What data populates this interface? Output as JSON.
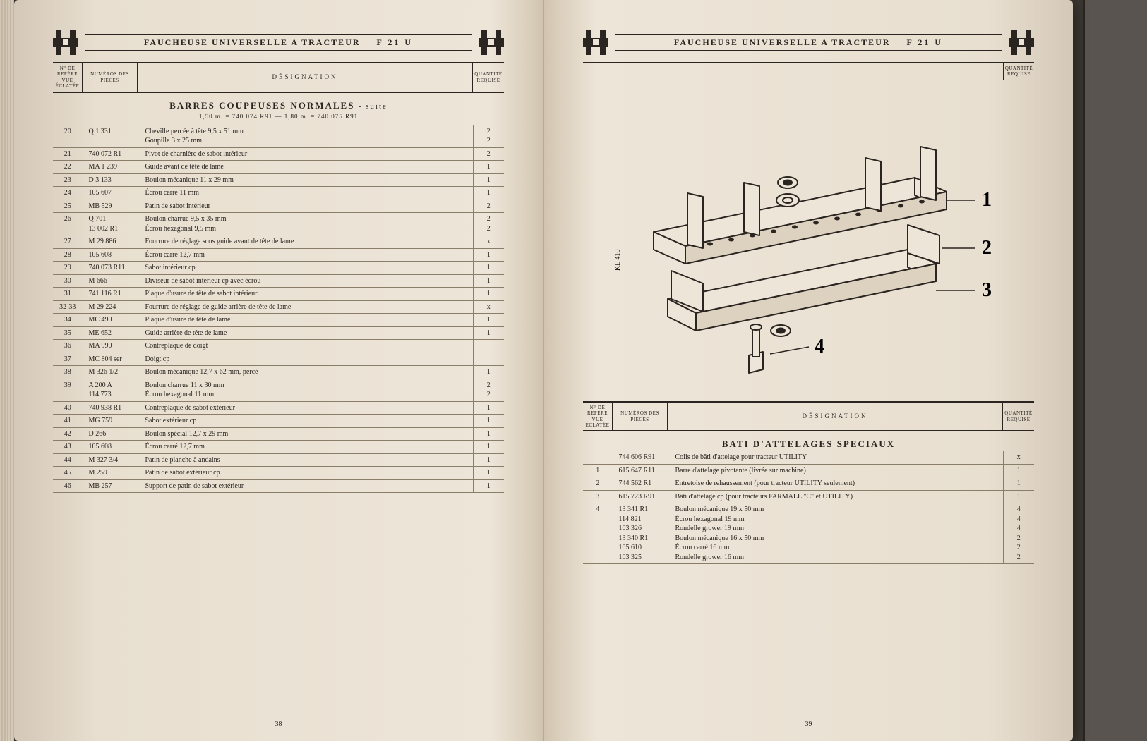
{
  "document_title": "FAUCHEUSE UNIVERSELLE A TRACTEUR",
  "model": "F 21 U",
  "column_headers": {
    "ref": "N° DE REPÈRE VUE ÉCLATÉE",
    "num": "NUMÉROS DES PIÈCES",
    "des": "DÉSIGNATION",
    "qty": "QUANTITÉ REQUISE"
  },
  "left_page": {
    "page_number": "38",
    "section_title": "BARRES COUPEUSES NORMALES",
    "section_suite": "- suite",
    "section_sub": "1,50 m. = 740 074 R91 — 1,80 m. = 740 075 R91",
    "rows": [
      {
        "ref": "20",
        "num": "Q     1 331",
        "des": "Cheville percée à tête 9,5 x 51 mm\nGoupille 3 x 25 mm",
        "qty": "2\n2"
      },
      {
        "ref": "21",
        "num": "740 072 R1",
        "des": "Pivot de charnière de sabot intérieur",
        "qty": "2"
      },
      {
        "ref": "22",
        "num": "MA   1 239",
        "des": "Guide avant de tête de lame",
        "qty": "1"
      },
      {
        "ref": "23",
        "num": "D     3 133",
        "des": "Boulon mécanique 11 x 29 mm",
        "qty": "1"
      },
      {
        "ref": "24",
        "num": "105 607",
        "des": "Écrou carré 11 mm",
        "qty": "1"
      },
      {
        "ref": "25",
        "num": "MB     529",
        "des": "Patin de sabot intérieur",
        "qty": "2"
      },
      {
        "ref": "26",
        "num": "Q       701\n13 002 R1",
        "des": "Boulon charrue 9,5 x 35 mm\nÉcrou hexagonal 9,5 mm",
        "qty": "2\n2"
      },
      {
        "ref": "27",
        "num": "M   29 886",
        "des": "Fourrure de réglage sous guide avant de tête de lame",
        "qty": "x"
      },
      {
        "ref": "28",
        "num": "105 608",
        "des": "Écrou carré 12,7 mm",
        "qty": "1"
      },
      {
        "ref": "29",
        "num": "740 073 R11",
        "des": "Sabot intérieur cp",
        "qty": "1"
      },
      {
        "ref": "30",
        "num": "M       666",
        "des": "Diviseur de sabot intérieur cp avec écrou",
        "qty": "1"
      },
      {
        "ref": "31",
        "num": "741 116 R1",
        "des": "Plaque d'usure de tête de sabot intérieur",
        "qty": "1"
      },
      {
        "ref": "32-33",
        "num": "M   29 224",
        "des": "Fourrure de réglage de guide arrière de tête de lame",
        "qty": "x"
      },
      {
        "ref": "34",
        "num": "MC     490",
        "des": "Plaque d'usure de tête de lame",
        "qty": "1"
      },
      {
        "ref": "35",
        "num": "ME     652",
        "des": "Guide arrière de tête de lame",
        "qty": "1"
      },
      {
        "ref": "36",
        "num": "MA     990",
        "des": "Contreplaque de doigt",
        "qty": ""
      },
      {
        "ref": "37",
        "num": "MC   804 ser",
        "des": "Doigt cp",
        "qty": ""
      },
      {
        "ref": "38",
        "num": "M     326 1/2",
        "des": "Boulon mécanique 12,7 x 62 mm, percé",
        "qty": "1"
      },
      {
        "ref": "39",
        "num": "A     200 A\n114 773",
        "des": "Boulon charrue 11 x 30 mm\nÉcrou hexagonal 11 mm",
        "qty": "2\n2"
      },
      {
        "ref": "40",
        "num": "740 938 R1",
        "des": "Contreplaque de sabot extérieur",
        "qty": "1"
      },
      {
        "ref": "41",
        "num": "MG     759",
        "des": "Sabot extérieur cp",
        "qty": "1"
      },
      {
        "ref": "42",
        "num": "D       266",
        "des": "Boulon spécial 12,7 x 29 mm",
        "qty": "1"
      },
      {
        "ref": "43",
        "num": "105 608",
        "des": "Écrou carré 12,7 mm",
        "qty": "1"
      },
      {
        "ref": "44",
        "num": "M     327 3/4",
        "des": "Patin de planche à andains",
        "qty": "1"
      },
      {
        "ref": "45",
        "num": "M       259",
        "des": "Patin de sabot extérieur cp",
        "qty": "1"
      },
      {
        "ref": "46",
        "num": "MB     257",
        "des": "Support de patin de sabot extérieur",
        "qty": "1"
      }
    ]
  },
  "right_page": {
    "page_number": "39",
    "diagram_code": "KL 410",
    "callouts": [
      "1",
      "2",
      "3",
      "4"
    ],
    "section_title": "BATI D'ATTELAGES SPECIAUX",
    "rows": [
      {
        "ref": "",
        "num": "744 606 R91",
        "des": "Colis de bâti d'attelage pour tracteur UTILITY",
        "qty": "x"
      },
      {
        "ref": "1",
        "num": "615 647 R11",
        "des": "Barre d'attelage pivotante (livrée sur machine)",
        "qty": "1"
      },
      {
        "ref": "2",
        "num": "744 562 R1",
        "des": "Entretoise de rehaussement (pour tracteur UTILITY seulement)",
        "qty": "1"
      },
      {
        "ref": "3",
        "num": "615 723 R91",
        "des": "Bâti d'attelage cp (pour tracteurs FARMALL \"C\" et UTILITY)",
        "qty": "1"
      },
      {
        "ref": "4",
        "num": "13 341 R1\n114 821\n103 326\n13 340 R1\n105 610\n103 325",
        "des": "Boulon mécanique 19 x 50 mm\nÉcrou hexagonal 19 mm\nRondelle grower 19 mm\nBoulon mécanique 16 x 50 mm\nÉcrou carré 16 mm\nRondelle grower 16 mm",
        "qty": "4\n4\n4\n2\n2\n2"
      }
    ]
  },
  "colors": {
    "ink": "#2a2520",
    "paper": "#ede5d8",
    "rule": "#8a7e6a"
  }
}
